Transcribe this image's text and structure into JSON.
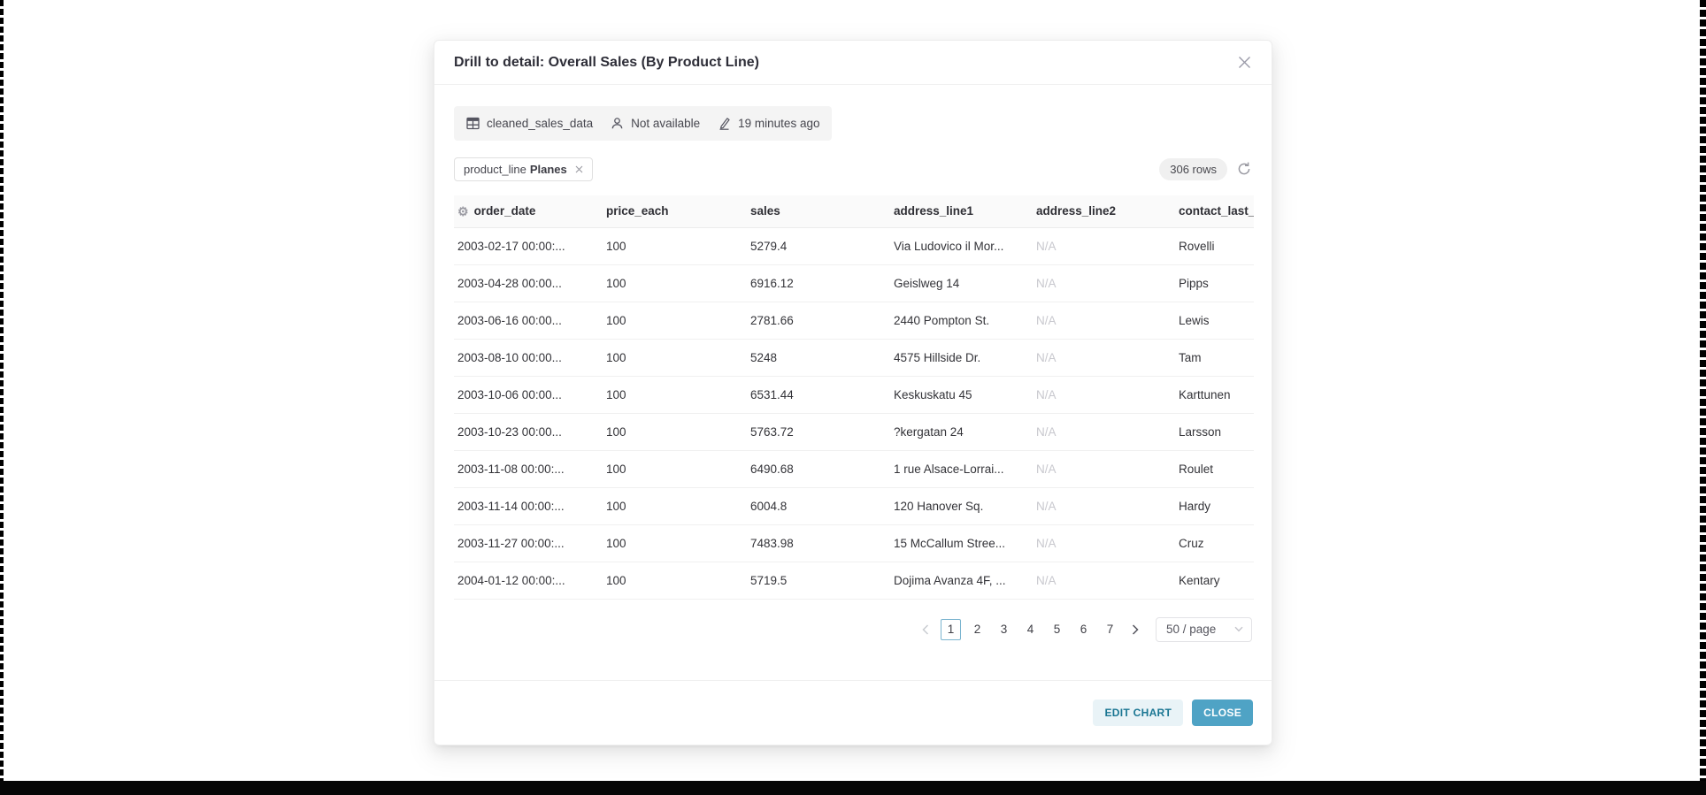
{
  "modal": {
    "title": "Drill to detail: Overall Sales (By Product Line)"
  },
  "metadata": {
    "datasource": "cleaned_sales_data",
    "owner": "Not available",
    "last_modified": "19 minutes ago"
  },
  "filters": [
    {
      "column": "product_line",
      "value": "Planes"
    }
  ],
  "rows_badge": "306 rows",
  "table": {
    "columns": [
      "order_date",
      "price_each",
      "sales",
      "address_line1",
      "address_line2",
      "contact_last_"
    ],
    "rows": [
      [
        "2003-02-17 00:00:...",
        "100",
        "5279.4",
        "Via Ludovico il Mor...",
        "N/A",
        "Rovelli"
      ],
      [
        "2003-04-28 00:00...",
        "100",
        "6916.12",
        "Geislweg 14",
        "N/A",
        "Pipps"
      ],
      [
        "2003-06-16 00:00...",
        "100",
        "2781.66",
        "2440 Pompton St.",
        "N/A",
        "Lewis"
      ],
      [
        "2003-08-10 00:00...",
        "100",
        "5248",
        "4575 Hillside Dr.",
        "N/A",
        "Tam"
      ],
      [
        "2003-10-06 00:00...",
        "100",
        "6531.44",
        "Keskuskatu 45",
        "N/A",
        "Karttunen"
      ],
      [
        "2003-10-23 00:00...",
        "100",
        "5763.72",
        "?kergatan 24",
        "N/A",
        "Larsson"
      ],
      [
        "2003-11-08 00:00:...",
        "100",
        "6490.68",
        "1 rue Alsace-Lorrai...",
        "N/A",
        "Roulet"
      ],
      [
        "2003-11-14 00:00:...",
        "100",
        "6004.8",
        "120 Hanover Sq.",
        "N/A",
        "Hardy"
      ],
      [
        "2003-11-27 00:00:...",
        "100",
        "7483.98",
        "15 McCallum Stree...",
        "N/A",
        "Cruz"
      ],
      [
        "2004-01-12 00:00:...",
        "100",
        "5719.5",
        "Dojima Avanza 4F, ...",
        "N/A",
        "Kentary"
      ]
    ],
    "na_display": "N/A"
  },
  "pagination": {
    "pages": [
      "1",
      "2",
      "3",
      "4",
      "5",
      "6",
      "7"
    ],
    "current": "1",
    "page_size_label": "50 / page"
  },
  "footer": {
    "edit_chart_label": "EDIT CHART",
    "close_label": "CLOSE"
  },
  "colors": {
    "primary": "#4fa3c5",
    "primary_light": "#e9f3f7",
    "primary_text": "#1a7693",
    "badge_bg": "#f0f0f0",
    "metadata_bg": "#f4f4f4",
    "header_row_bg": "#fafafa",
    "divider": "#f0f0f0",
    "muted_text": "#c8c8ce",
    "pagination_active_border": "#7ab4cf"
  }
}
